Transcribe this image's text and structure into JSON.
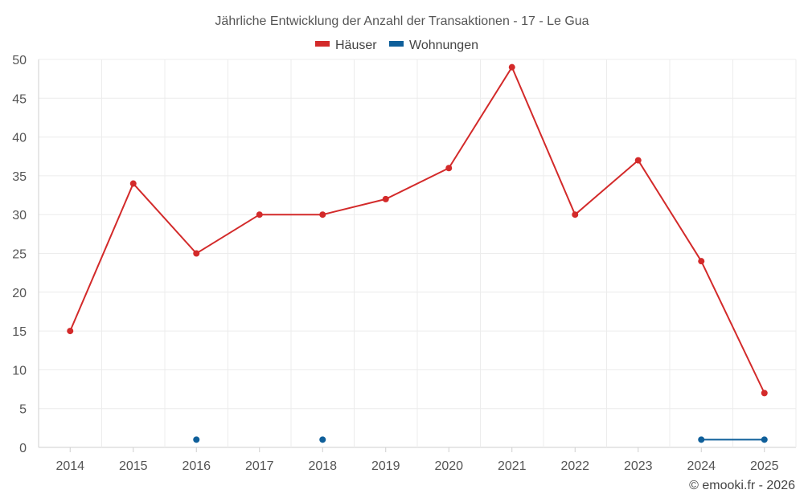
{
  "chart_data": {
    "type": "line",
    "title": "Jährliche Entwicklung der Anzahl der Transaktionen - 17 - Le Gua",
    "xlabel": "",
    "ylabel": "",
    "categories": [
      "2014",
      "2015",
      "2016",
      "2017",
      "2018",
      "2019",
      "2020",
      "2021",
      "2022",
      "2023",
      "2024",
      "2025"
    ],
    "ylim": [
      0,
      50
    ],
    "yticks": [
      "0",
      "5",
      "10",
      "15",
      "20",
      "25",
      "30",
      "35",
      "40",
      "45",
      "50"
    ],
    "grid": true,
    "legend_position": "top-center",
    "series": [
      {
        "name": "Häuser",
        "color": "#d32a2a",
        "values": [
          15,
          34,
          25,
          30,
          30,
          32,
          36,
          49,
          30,
          37,
          24,
          7
        ]
      },
      {
        "name": "Wohnungen",
        "color": "#0f5f9a",
        "values": [
          null,
          null,
          1,
          null,
          1,
          null,
          null,
          null,
          null,
          null,
          1,
          1
        ]
      }
    ]
  },
  "copyright": "© emooki.fr - 2026"
}
